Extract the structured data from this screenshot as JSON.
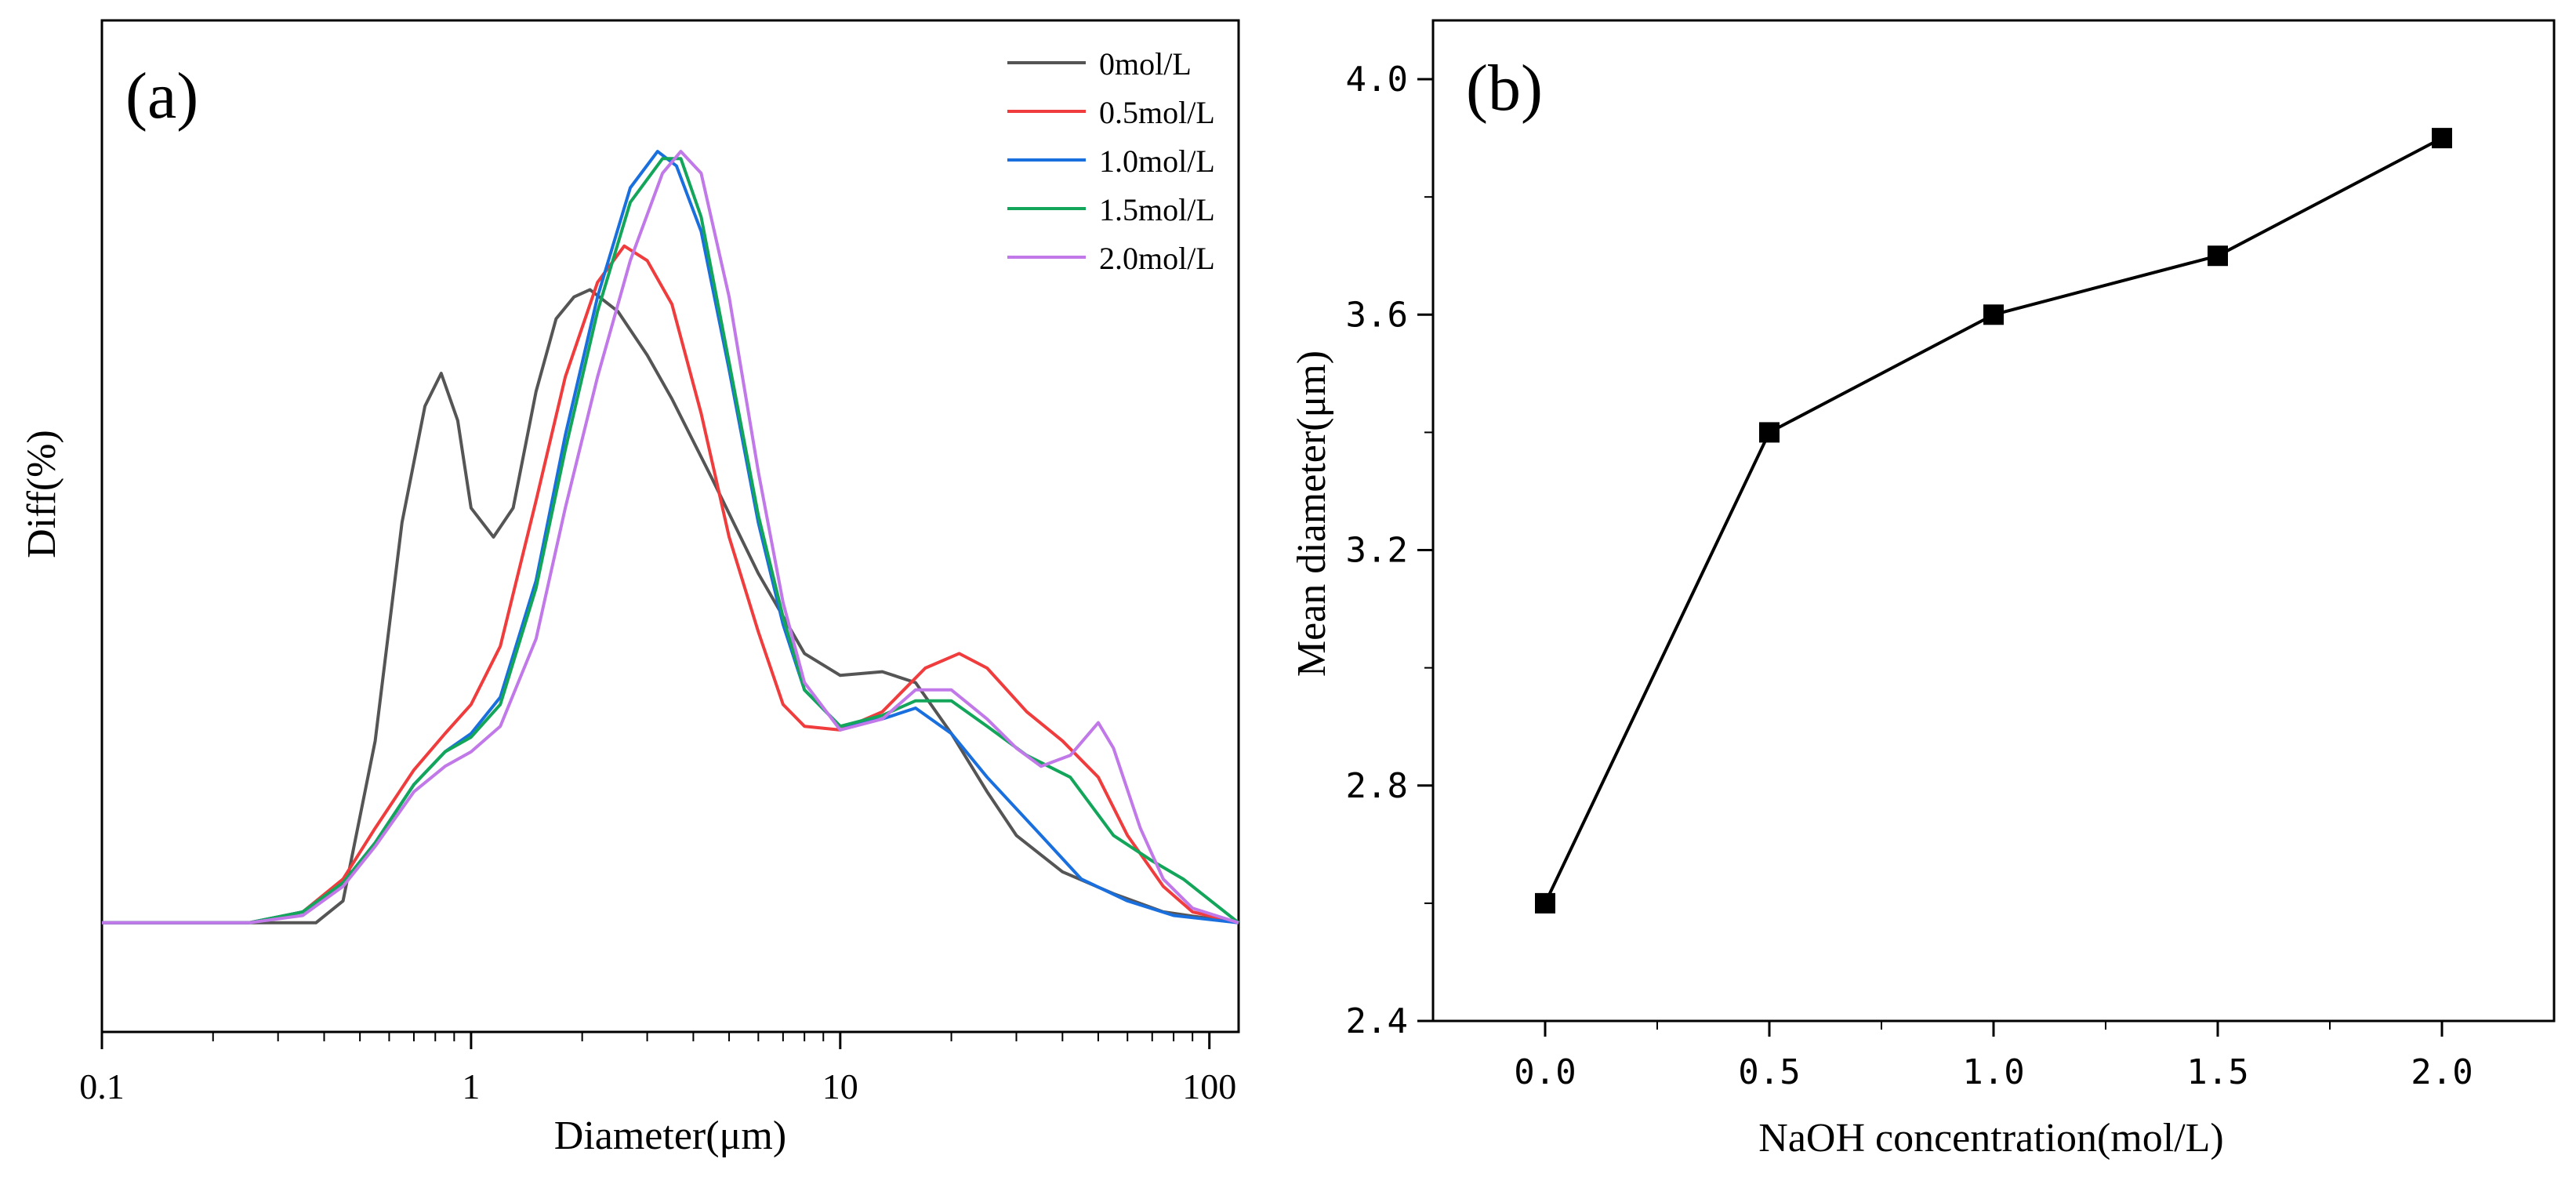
{
  "chart_data": [
    {
      "panel_label": "(a)",
      "type": "line",
      "xscale": "log",
      "xlabel": "Diameter(μm)",
      "ylabel": "Diff(%)",
      "xlim": [
        0.1,
        120
      ],
      "ylim": [
        -1.5,
        12.4
      ],
      "x_ticks": [
        {
          "v": 0.1,
          "label": "0.1"
        },
        {
          "v": 1,
          "label": "1"
        },
        {
          "v": 10,
          "label": "10"
        },
        {
          "v": 100,
          "label": "100"
        }
      ],
      "legend_position": "top-right",
      "series": [
        {
          "name": "0mol/L",
          "color": "#555555",
          "points": [
            [
              0.1,
              0
            ],
            [
              0.38,
              0
            ],
            [
              0.45,
              0.3
            ],
            [
              0.55,
              2.5
            ],
            [
              0.65,
              5.5
            ],
            [
              0.75,
              7.1
            ],
            [
              0.83,
              7.55
            ],
            [
              0.92,
              6.9
            ],
            [
              1.0,
              5.7
            ],
            [
              1.15,
              5.3
            ],
            [
              1.3,
              5.7
            ],
            [
              1.5,
              7.3
            ],
            [
              1.7,
              8.3
            ],
            [
              1.9,
              8.6
            ],
            [
              2.1,
              8.7
            ],
            [
              2.5,
              8.4
            ],
            [
              3.0,
              7.8
            ],
            [
              3.5,
              7.2
            ],
            [
              4.5,
              6.1
            ],
            [
              6.0,
              4.8
            ],
            [
              8.0,
              3.7
            ],
            [
              10.0,
              3.4
            ],
            [
              13.0,
              3.45
            ],
            [
              16.0,
              3.3
            ],
            [
              20.0,
              2.6
            ],
            [
              25.0,
              1.8
            ],
            [
              30.0,
              1.2
            ],
            [
              40.0,
              0.7
            ],
            [
              55.0,
              0.4
            ],
            [
              75.0,
              0.15
            ],
            [
              120.0,
              0
            ]
          ]
        },
        {
          "name": "0.5mol/L",
          "color": "#f03c3c",
          "points": [
            [
              0.1,
              0
            ],
            [
              0.25,
              0
            ],
            [
              0.35,
              0.15
            ],
            [
              0.45,
              0.6
            ],
            [
              0.55,
              1.3
            ],
            [
              0.7,
              2.1
            ],
            [
              0.85,
              2.6
            ],
            [
              1.0,
              3.0
            ],
            [
              1.2,
              3.8
            ],
            [
              1.5,
              5.8
            ],
            [
              1.8,
              7.5
            ],
            [
              2.2,
              8.8
            ],
            [
              2.6,
              9.3
            ],
            [
              3.0,
              9.1
            ],
            [
              3.5,
              8.5
            ],
            [
              4.2,
              7.0
            ],
            [
              5.0,
              5.3
            ],
            [
              6.0,
              4.0
            ],
            [
              7.0,
              3.0
            ],
            [
              8.0,
              2.7
            ],
            [
              10.0,
              2.65
            ],
            [
              13.0,
              2.9
            ],
            [
              17.0,
              3.5
            ],
            [
              21.0,
              3.7
            ],
            [
              25.0,
              3.5
            ],
            [
              32.0,
              2.9
            ],
            [
              40.0,
              2.5
            ],
            [
              50.0,
              2.0
            ],
            [
              60.0,
              1.2
            ],
            [
              75.0,
              0.5
            ],
            [
              90.0,
              0.15
            ],
            [
              120.0,
              0
            ]
          ]
        },
        {
          "name": "1.0mol/L",
          "color": "#1a6fdf",
          "points": [
            [
              0.1,
              0
            ],
            [
              0.25,
              0
            ],
            [
              0.35,
              0.15
            ],
            [
              0.45,
              0.55
            ],
            [
              0.55,
              1.1
            ],
            [
              0.7,
              1.9
            ],
            [
              0.85,
              2.35
            ],
            [
              1.0,
              2.6
            ],
            [
              1.2,
              3.1
            ],
            [
              1.5,
              4.7
            ],
            [
              1.8,
              6.7
            ],
            [
              2.2,
              8.6
            ],
            [
              2.7,
              10.1
            ],
            [
              3.2,
              10.6
            ],
            [
              3.6,
              10.4
            ],
            [
              4.2,
              9.5
            ],
            [
              5.0,
              7.6
            ],
            [
              6.0,
              5.5
            ],
            [
              7.0,
              4.1
            ],
            [
              8.0,
              3.2
            ],
            [
              10.0,
              2.7
            ],
            [
              13.0,
              2.8
            ],
            [
              16.0,
              2.95
            ],
            [
              20.0,
              2.6
            ],
            [
              25.0,
              2.0
            ],
            [
              35.0,
              1.2
            ],
            [
              45.0,
              0.6
            ],
            [
              60.0,
              0.3
            ],
            [
              80.0,
              0.1
            ],
            [
              120.0,
              0
            ]
          ]
        },
        {
          "name": "1.5mol/L",
          "color": "#13a65b",
          "points": [
            [
              0.1,
              0
            ],
            [
              0.25,
              0
            ],
            [
              0.35,
              0.15
            ],
            [
              0.45,
              0.55
            ],
            [
              0.55,
              1.1
            ],
            [
              0.7,
              1.9
            ],
            [
              0.85,
              2.35
            ],
            [
              1.0,
              2.55
            ],
            [
              1.2,
              3.0
            ],
            [
              1.5,
              4.6
            ],
            [
              1.8,
              6.5
            ],
            [
              2.2,
              8.4
            ],
            [
              2.7,
              9.9
            ],
            [
              3.3,
              10.5
            ],
            [
              3.7,
              10.5
            ],
            [
              4.2,
              9.7
            ],
            [
              5.0,
              7.7
            ],
            [
              6.0,
              5.6
            ],
            [
              7.0,
              4.2
            ],
            [
              8.0,
              3.2
            ],
            [
              10.0,
              2.7
            ],
            [
              13.0,
              2.85
            ],
            [
              16.0,
              3.05
            ],
            [
              20.0,
              3.05
            ],
            [
              25.0,
              2.7
            ],
            [
              32.0,
              2.3
            ],
            [
              42.0,
              2.0
            ],
            [
              55.0,
              1.2
            ],
            [
              70.0,
              0.85
            ],
            [
              85.0,
              0.6
            ],
            [
              120.0,
              0
            ]
          ]
        },
        {
          "name": "2.0mol/L",
          "color": "#c178e8",
          "points": [
            [
              0.1,
              0
            ],
            [
              0.25,
              0
            ],
            [
              0.35,
              0.1
            ],
            [
              0.45,
              0.5
            ],
            [
              0.55,
              1.05
            ],
            [
              0.7,
              1.8
            ],
            [
              0.85,
              2.15
            ],
            [
              1.0,
              2.35
            ],
            [
              1.2,
              2.7
            ],
            [
              1.5,
              3.9
            ],
            [
              1.8,
              5.7
            ],
            [
              2.2,
              7.5
            ],
            [
              2.7,
              9.1
            ],
            [
              3.3,
              10.3
            ],
            [
              3.7,
              10.6
            ],
            [
              4.2,
              10.3
            ],
            [
              5.0,
              8.6
            ],
            [
              6.0,
              6.2
            ],
            [
              7.0,
              4.4
            ],
            [
              8.0,
              3.3
            ],
            [
              10.0,
              2.65
            ],
            [
              13.0,
              2.8
            ],
            [
              16.0,
              3.2
            ],
            [
              20.0,
              3.2
            ],
            [
              25.0,
              2.8
            ],
            [
              30.0,
              2.4
            ],
            [
              35.0,
              2.15
            ],
            [
              42.0,
              2.3
            ],
            [
              50.0,
              2.75
            ],
            [
              55.0,
              2.4
            ],
            [
              65.0,
              1.3
            ],
            [
              75.0,
              0.6
            ],
            [
              90.0,
              0.2
            ],
            [
              120.0,
              0
            ]
          ]
        }
      ]
    },
    {
      "panel_label": "(b)",
      "type": "line",
      "xlabel": "NaOH concentration(mol/L)",
      "ylabel": "Mean diameter(μm)",
      "xlim": [
        -0.25,
        2.25
      ],
      "ylim": [
        2.4,
        4.1
      ],
      "x_ticks": [
        {
          "v": 0.0,
          "label": "0.0"
        },
        {
          "v": 0.5,
          "label": "0.5"
        },
        {
          "v": 1.0,
          "label": "1.0"
        },
        {
          "v": 1.5,
          "label": "1.5"
        },
        {
          "v": 2.0,
          "label": "2.0"
        }
      ],
      "y_ticks": [
        {
          "v": 2.4,
          "label": "2.4"
        },
        {
          "v": 2.8,
          "label": "2.8"
        },
        {
          "v": 3.2,
          "label": "3.2"
        },
        {
          "v": 3.6,
          "label": "3.6"
        },
        {
          "v": 4.0,
          "label": "4.0"
        }
      ],
      "series": [
        {
          "name": "Mean diameter",
          "color": "#000000",
          "x": [
            0.0,
            0.5,
            1.0,
            1.5,
            2.0
          ],
          "values": [
            2.6,
            3.4,
            3.6,
            3.7,
            3.9
          ]
        }
      ]
    }
  ]
}
